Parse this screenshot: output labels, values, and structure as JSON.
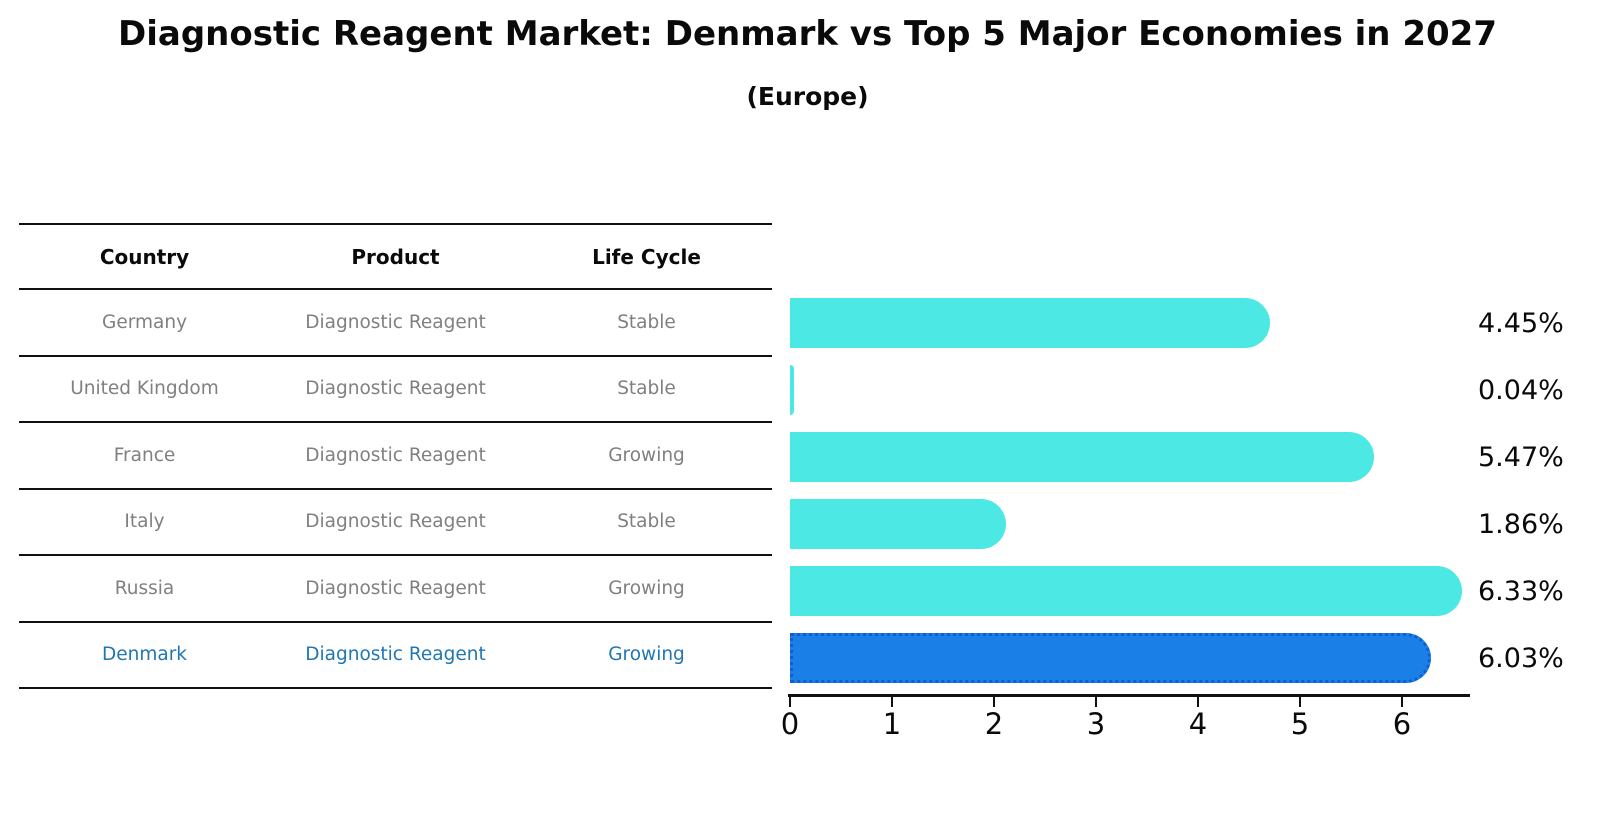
{
  "title": "Diagnostic Reagent Market: Denmark vs Top 5 Major Economies in 2027",
  "subtitle": "(Europe)",
  "table": {
    "headers": [
      "Country",
      "Product",
      "Life Cycle"
    ],
    "rows": [
      {
        "country": "Germany",
        "product": "Diagnostic Reagent",
        "life_cycle": "Stable",
        "highlight": false
      },
      {
        "country": "United Kingdom",
        "product": "Diagnostic Reagent",
        "life_cycle": "Stable",
        "highlight": false
      },
      {
        "country": "France",
        "product": "Diagnostic Reagent",
        "life_cycle": "Growing",
        "highlight": false
      },
      {
        "country": "Italy",
        "product": "Diagnostic Reagent",
        "life_cycle": "Stable",
        "highlight": false
      },
      {
        "country": "Russia",
        "product": "Diagnostic Reagent",
        "life_cycle": "Growing",
        "highlight": false
      },
      {
        "country": "Denmark",
        "product": "Diagnostic Reagent",
        "life_cycle": "Growing",
        "highlight": true
      }
    ]
  },
  "chart_data": {
    "type": "bar",
    "orientation": "horizontal",
    "title": "Diagnostic Reagent Market: Denmark vs Top 5 Major Economies in 2027",
    "subtitle": "(Europe)",
    "categories": [
      "Germany",
      "United Kingdom",
      "France",
      "Italy",
      "Russia",
      "Denmark"
    ],
    "values": [
      4.45,
      0.04,
      5.47,
      1.86,
      6.33,
      6.03
    ],
    "value_labels": [
      "4.45%",
      "0.04%",
      "5.47%",
      "1.86%",
      "6.33%",
      "6.03%"
    ],
    "unit": "%",
    "highlight_category": "Denmark",
    "x_ticks": [
      0,
      1,
      2,
      3,
      4,
      5,
      6
    ],
    "xlim": [
      0,
      6.65
    ],
    "grid": false,
    "legend": false,
    "colors": {
      "bar": "#4BE8E4",
      "highlight_bar": "#1B7FE8",
      "highlight_bar_edge": "#0E5ED6",
      "highlight_text": "#1F77B4",
      "table_text": "#808080",
      "ink": "#111111",
      "background": "#FFFFFF"
    }
  }
}
